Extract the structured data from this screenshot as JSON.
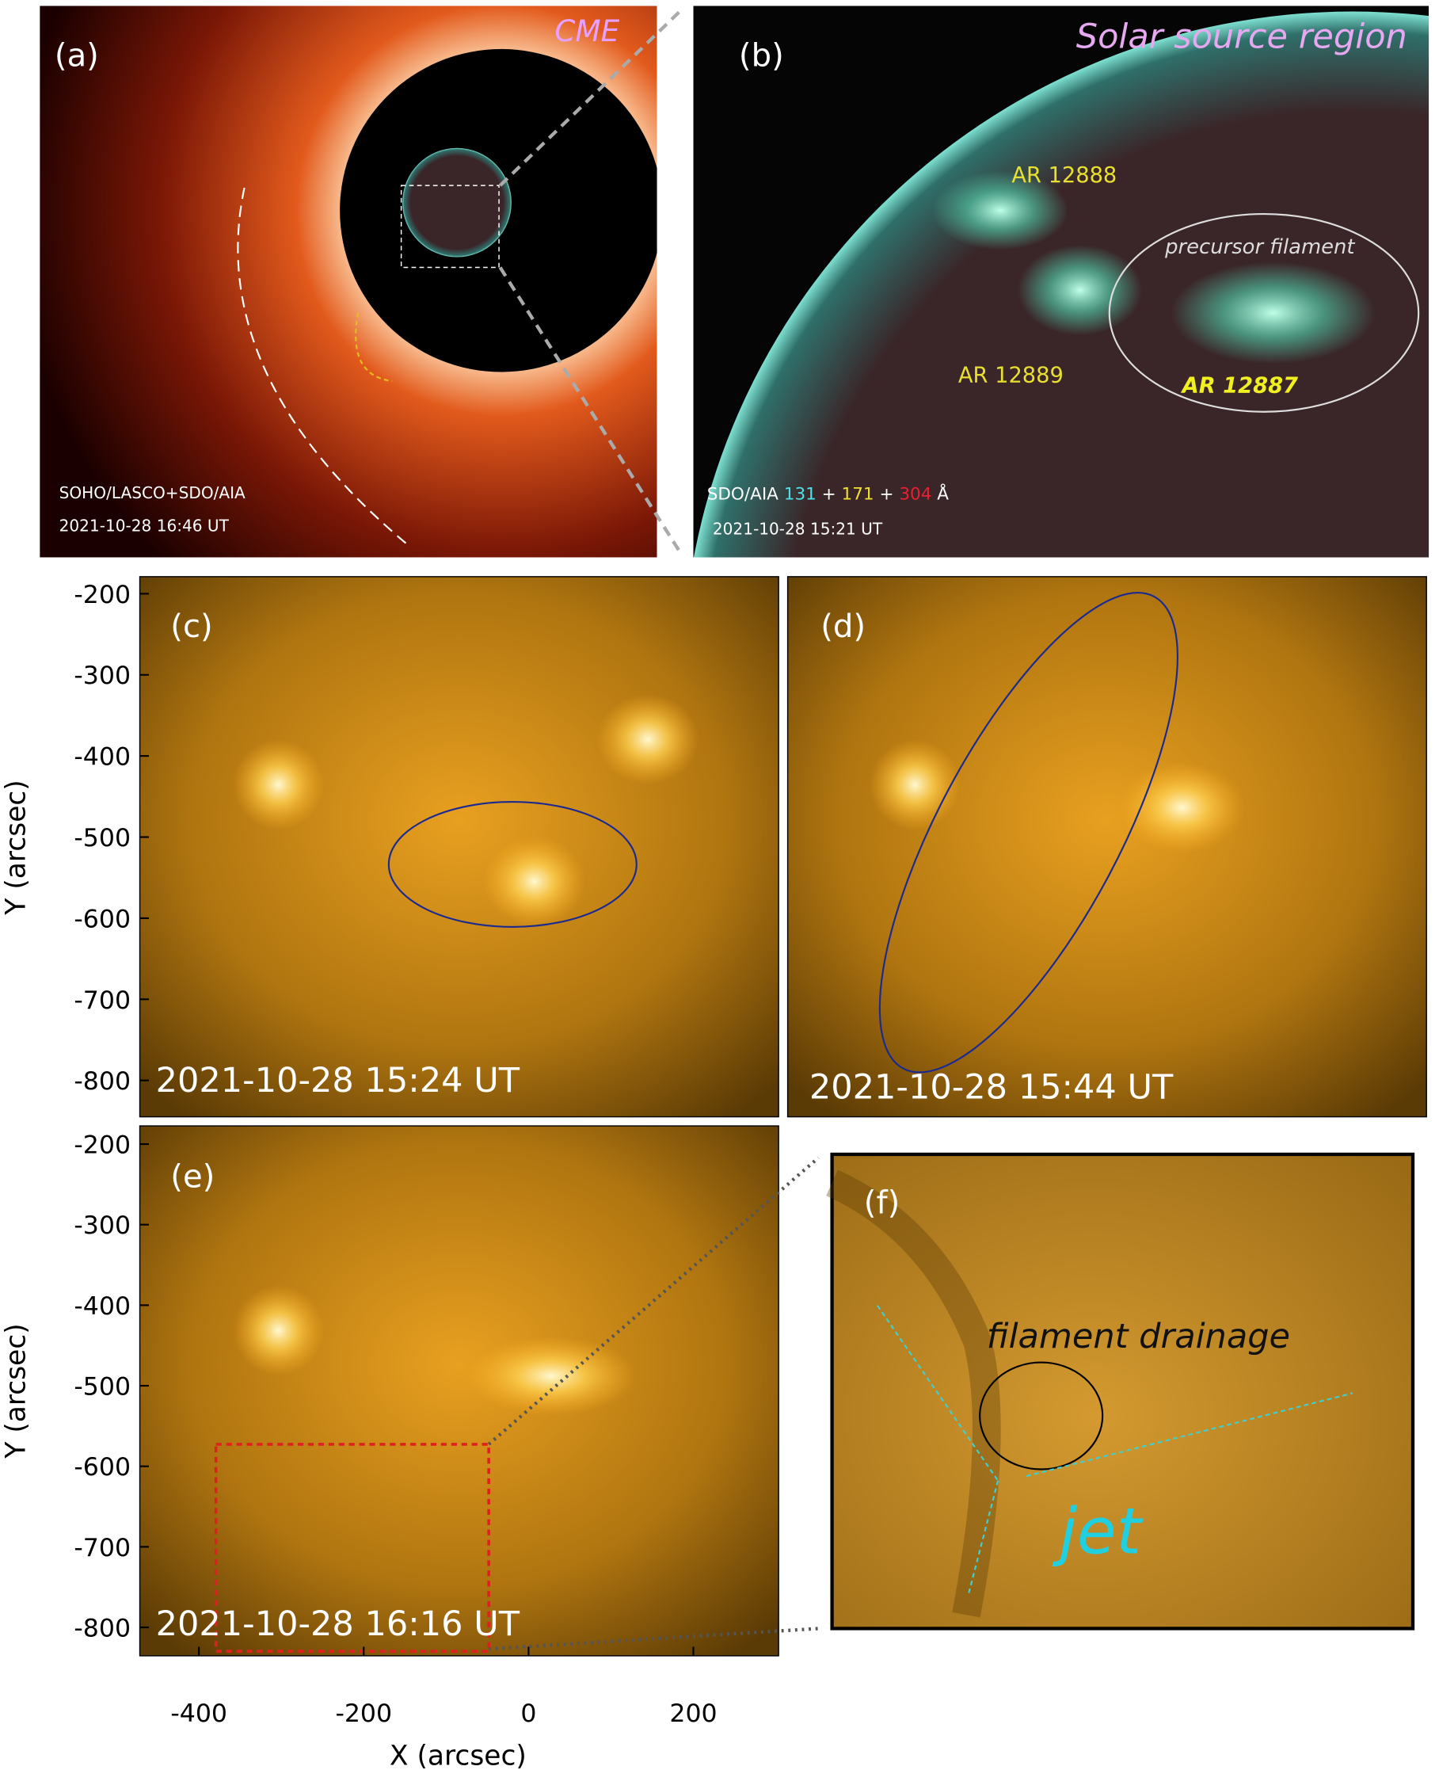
{
  "panels": {
    "a": {
      "label": "(a)",
      "title": "CME",
      "instrument": "SOHO/LASCO+SDO/AIA",
      "time": "2021-10-28 16:46 UT"
    },
    "b": {
      "label": "(b)",
      "title": "Solar source region",
      "regions": [
        "AR 12888",
        "AR 12889",
        "AR 12887"
      ],
      "annotation": "precursor filament",
      "instrument": [
        "SDO/AIA",
        "131",
        "+",
        "171",
        "+",
        "304",
        "Å"
      ],
      "time": "2021-10-28 15:21 UT"
    },
    "c": {
      "label": "(c)",
      "time": "2021-10-28 15:24 UT"
    },
    "d": {
      "label": "(d)",
      "time": "2021-10-28 15:44 UT"
    },
    "e": {
      "label": "(e)",
      "time": "2021-10-28 16:16 UT"
    },
    "f": {
      "label": "(f)",
      "annotation": "filament drainage",
      "feature": "jet"
    }
  },
  "axes": {
    "y_label": "Y (arcsec)",
    "x_label": "X (arcsec)",
    "yticks": [
      -200,
      -300,
      -400,
      -500,
      -600,
      -700,
      -800
    ],
    "xticks": [
      -400,
      -200,
      0,
      200
    ]
  }
}
